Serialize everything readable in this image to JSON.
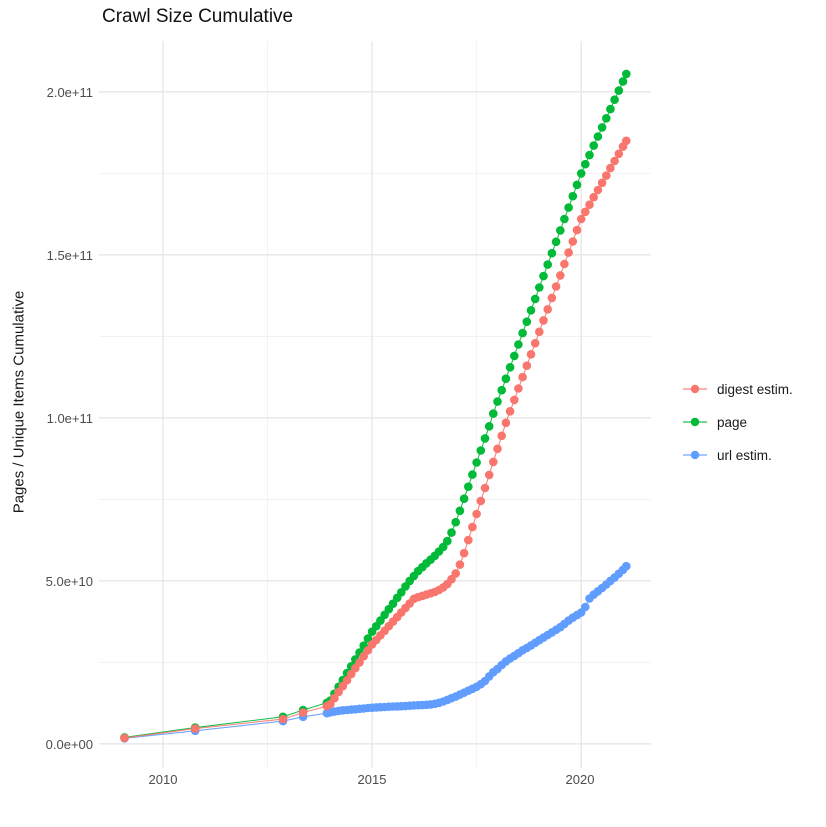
{
  "title": "Crawl Size Cumulative",
  "y_axis": {
    "label": "Pages / Unique Items Cumulative",
    "tick_labels": [
      "0.0e+00",
      "5.0e+10",
      "1.0e+11",
      "1.5e+11",
      "2.0e+11"
    ]
  },
  "x_axis": {
    "tick_labels": [
      "2010",
      "2015",
      "2020"
    ]
  },
  "legend": {
    "items": [
      {
        "label": "digest estim.",
        "color": "#F8766D"
      },
      {
        "label": "page",
        "color": "#00BA38"
      },
      {
        "label": "url estim.",
        "color": "#619CFF"
      }
    ]
  },
  "chart_data": {
    "type": "scatter",
    "title": "Crawl Size Cumulative",
    "xlabel": "",
    "ylabel": "Pages / Unique Items Cumulative",
    "x_unit": "year (crawl date, fractional)",
    "y_unit": "count, values given in billions (1e9)",
    "xlim": [
      2008.47,
      2021.67
    ],
    "ylim_e9": [
      -7.4,
      215.6
    ],
    "x_major": [
      2010,
      2015,
      2020
    ],
    "x_minor": [
      2012.5,
      2017.5
    ],
    "y_major_e9": [
      0,
      50,
      100,
      150,
      200
    ],
    "y_minor_e9": [
      25,
      75,
      125,
      175
    ],
    "grid": true,
    "legend_position": "right",
    "point_radius": 4.3,
    "draw_order_note": "url estim. drawn first, then page, then digest estim. on top",
    "series": [
      {
        "name": "digest estim.",
        "color": "#F8766D",
        "points": [
          [
            2009.08,
            1.8
          ],
          [
            2010.77,
            4.7
          ],
          [
            2012.87,
            7.6
          ],
          [
            2013.35,
            9.6
          ],
          [
            2013.92,
            11.6
          ],
          [
            2014.0,
            12.2
          ],
          [
            2014.1,
            14.0
          ],
          [
            2014.2,
            15.9
          ],
          [
            2014.3,
            17.7
          ],
          [
            2014.4,
            19.5
          ],
          [
            2014.5,
            21.4
          ],
          [
            2014.6,
            23.2
          ],
          [
            2014.7,
            25.0
          ],
          [
            2014.8,
            26.9
          ],
          [
            2014.9,
            28.7
          ],
          [
            2015.0,
            30.5
          ],
          [
            2015.1,
            31.9
          ],
          [
            2015.2,
            33.3
          ],
          [
            2015.3,
            34.7
          ],
          [
            2015.4,
            36.1
          ],
          [
            2015.5,
            37.5
          ],
          [
            2015.6,
            38.9
          ],
          [
            2015.7,
            40.3
          ],
          [
            2015.8,
            41.7
          ],
          [
            2015.9,
            43.1
          ],
          [
            2016.0,
            44.5
          ],
          [
            2016.1,
            45.0
          ],
          [
            2016.2,
            45.4
          ],
          [
            2016.3,
            45.8
          ],
          [
            2016.4,
            46.2
          ],
          [
            2016.5,
            46.6
          ],
          [
            2016.6,
            47.2
          ],
          [
            2016.7,
            48.0
          ],
          [
            2016.8,
            49.0
          ],
          [
            2016.9,
            50.5
          ],
          [
            2017.0,
            52.3
          ],
          [
            2017.1,
            55.0
          ],
          [
            2017.2,
            58.5
          ],
          [
            2017.3,
            62.5
          ],
          [
            2017.4,
            66.5
          ],
          [
            2017.5,
            70.5
          ],
          [
            2017.6,
            74.5
          ],
          [
            2017.7,
            78.5
          ],
          [
            2017.8,
            82.5
          ],
          [
            2017.9,
            86.5
          ],
          [
            2018.0,
            90.5
          ],
          [
            2018.1,
            94.5
          ],
          [
            2018.2,
            98.5
          ],
          [
            2018.3,
            102.0
          ],
          [
            2018.4,
            105.5
          ],
          [
            2018.5,
            109.0
          ],
          [
            2018.6,
            112.5
          ],
          [
            2018.7,
            116.0
          ],
          [
            2018.8,
            119.5
          ],
          [
            2018.9,
            122.9
          ],
          [
            2019.0,
            126.4
          ],
          [
            2019.1,
            129.9
          ],
          [
            2019.2,
            133.3
          ],
          [
            2019.3,
            136.8
          ],
          [
            2019.4,
            140.3
          ],
          [
            2019.5,
            143.7
          ],
          [
            2019.6,
            147.2
          ],
          [
            2019.7,
            150.7
          ],
          [
            2019.8,
            154.1
          ],
          [
            2019.9,
            157.6
          ],
          [
            2020.0,
            161.0
          ],
          [
            2020.1,
            163.2
          ],
          [
            2020.2,
            165.4
          ],
          [
            2020.3,
            167.7
          ],
          [
            2020.4,
            169.9
          ],
          [
            2020.5,
            172.1
          ],
          [
            2020.6,
            174.3
          ],
          [
            2020.7,
            176.6
          ],
          [
            2020.8,
            178.8
          ],
          [
            2020.9,
            181.0
          ],
          [
            2021.0,
            183.2
          ],
          [
            2021.08,
            185.0
          ]
        ]
      },
      {
        "name": "page",
        "color": "#00BA38",
        "points": [
          [
            2009.08,
            2.0
          ],
          [
            2010.77,
            5.0
          ],
          [
            2012.87,
            8.3
          ],
          [
            2013.35,
            10.4
          ],
          [
            2013.92,
            12.6
          ],
          [
            2014.0,
            13.3
          ],
          [
            2014.1,
            15.4
          ],
          [
            2014.2,
            17.5
          ],
          [
            2014.3,
            19.6
          ],
          [
            2014.4,
            21.7
          ],
          [
            2014.5,
            23.8
          ],
          [
            2014.6,
            25.9
          ],
          [
            2014.7,
            28.0
          ],
          [
            2014.8,
            30.1
          ],
          [
            2014.9,
            32.3
          ],
          [
            2015.0,
            34.4
          ],
          [
            2015.1,
            36.1
          ],
          [
            2015.2,
            37.8
          ],
          [
            2015.3,
            39.6
          ],
          [
            2015.4,
            41.3
          ],
          [
            2015.5,
            43.0
          ],
          [
            2015.6,
            44.8
          ],
          [
            2015.7,
            46.5
          ],
          [
            2015.8,
            48.3
          ],
          [
            2015.9,
            50.0
          ],
          [
            2016.0,
            51.5
          ],
          [
            2016.1,
            53.0
          ],
          [
            2016.2,
            54.2
          ],
          [
            2016.3,
            55.4
          ],
          [
            2016.4,
            56.5
          ],
          [
            2016.5,
            57.7
          ],
          [
            2016.6,
            59.0
          ],
          [
            2016.7,
            60.4
          ],
          [
            2016.8,
            62.2
          ],
          [
            2016.9,
            64.8
          ],
          [
            2017.0,
            68.0
          ],
          [
            2017.1,
            71.5
          ],
          [
            2017.2,
            75.2
          ],
          [
            2017.3,
            78.9
          ],
          [
            2017.4,
            82.6
          ],
          [
            2017.5,
            86.3
          ],
          [
            2017.6,
            90.0
          ],
          [
            2017.7,
            93.7
          ],
          [
            2017.8,
            97.4
          ],
          [
            2017.9,
            101.3
          ],
          [
            2018.0,
            105.0
          ],
          [
            2018.1,
            108.5
          ],
          [
            2018.2,
            112.0
          ],
          [
            2018.3,
            115.5
          ],
          [
            2018.4,
            119.0
          ],
          [
            2018.5,
            122.5
          ],
          [
            2018.6,
            126.0
          ],
          [
            2018.7,
            129.5
          ],
          [
            2018.8,
            133.0
          ],
          [
            2018.9,
            136.5
          ],
          [
            2019.0,
            140.0
          ],
          [
            2019.1,
            143.5
          ],
          [
            2019.2,
            147.0
          ],
          [
            2019.3,
            150.5
          ],
          [
            2019.4,
            154.0
          ],
          [
            2019.5,
            157.5
          ],
          [
            2019.6,
            161.0
          ],
          [
            2019.7,
            164.5
          ],
          [
            2019.8,
            168.0
          ],
          [
            2019.9,
            171.5
          ],
          [
            2020.0,
            175.0
          ],
          [
            2020.1,
            177.8
          ],
          [
            2020.2,
            180.6
          ],
          [
            2020.3,
            183.5
          ],
          [
            2020.4,
            186.3
          ],
          [
            2020.5,
            189.1
          ],
          [
            2020.6,
            191.9
          ],
          [
            2020.7,
            194.7
          ],
          [
            2020.8,
            197.6
          ],
          [
            2020.9,
            200.4
          ],
          [
            2021.0,
            203.2
          ],
          [
            2021.08,
            205.5
          ]
        ]
      },
      {
        "name": "url estim.",
        "color": "#619CFF",
        "points": [
          [
            2009.08,
            1.7
          ],
          [
            2010.77,
            4.0
          ],
          [
            2012.87,
            7.0
          ],
          [
            2013.35,
            8.3
          ],
          [
            2013.92,
            9.4
          ],
          [
            2014.0,
            9.7
          ],
          [
            2014.1,
            9.9
          ],
          [
            2014.2,
            10.1
          ],
          [
            2014.3,
            10.3
          ],
          [
            2014.4,
            10.4
          ],
          [
            2014.5,
            10.5
          ],
          [
            2014.6,
            10.6
          ],
          [
            2014.7,
            10.75
          ],
          [
            2014.8,
            10.85
          ],
          [
            2014.9,
            11.0
          ],
          [
            2015.0,
            11.1
          ],
          [
            2015.1,
            11.2
          ],
          [
            2015.2,
            11.25
          ],
          [
            2015.3,
            11.3
          ],
          [
            2015.4,
            11.4
          ],
          [
            2015.5,
            11.45
          ],
          [
            2015.6,
            11.5
          ],
          [
            2015.7,
            11.55
          ],
          [
            2015.8,
            11.6
          ],
          [
            2015.9,
            11.7
          ],
          [
            2016.0,
            11.8
          ],
          [
            2016.1,
            11.85
          ],
          [
            2016.2,
            11.9
          ],
          [
            2016.3,
            12.0
          ],
          [
            2016.4,
            12.1
          ],
          [
            2016.5,
            12.3
          ],
          [
            2016.6,
            12.6
          ],
          [
            2016.7,
            13.0
          ],
          [
            2016.8,
            13.5
          ],
          [
            2016.9,
            14.0
          ],
          [
            2017.0,
            14.5
          ],
          [
            2017.1,
            15.1
          ],
          [
            2017.2,
            15.7
          ],
          [
            2017.3,
            16.3
          ],
          [
            2017.4,
            16.9
          ],
          [
            2017.5,
            17.5
          ],
          [
            2017.6,
            18.3
          ],
          [
            2017.7,
            19.3
          ],
          [
            2017.8,
            20.7
          ],
          [
            2017.9,
            22.0
          ],
          [
            2018.0,
            23.0
          ],
          [
            2018.1,
            24.2
          ],
          [
            2018.2,
            25.3
          ],
          [
            2018.3,
            26.2
          ],
          [
            2018.4,
            27.0
          ],
          [
            2018.5,
            27.8
          ],
          [
            2018.6,
            28.7
          ],
          [
            2018.7,
            29.4
          ],
          [
            2018.8,
            30.2
          ],
          [
            2018.9,
            31.0
          ],
          [
            2019.0,
            31.8
          ],
          [
            2019.1,
            32.6
          ],
          [
            2019.2,
            33.4
          ],
          [
            2019.3,
            34.2
          ],
          [
            2019.4,
            35.0
          ],
          [
            2019.5,
            35.8
          ],
          [
            2019.6,
            36.8
          ],
          [
            2019.7,
            37.8
          ],
          [
            2019.8,
            38.7
          ],
          [
            2019.9,
            39.5
          ],
          [
            2020.0,
            40.3
          ],
          [
            2020.1,
            42.0
          ],
          [
            2020.2,
            44.6
          ],
          [
            2020.3,
            45.8
          ],
          [
            2020.4,
            46.8
          ],
          [
            2020.5,
            47.8
          ],
          [
            2020.6,
            48.9
          ],
          [
            2020.7,
            50.0
          ],
          [
            2020.8,
            51.0
          ],
          [
            2020.9,
            52.2
          ],
          [
            2021.0,
            53.4
          ],
          [
            2021.08,
            54.5
          ]
        ]
      }
    ]
  }
}
